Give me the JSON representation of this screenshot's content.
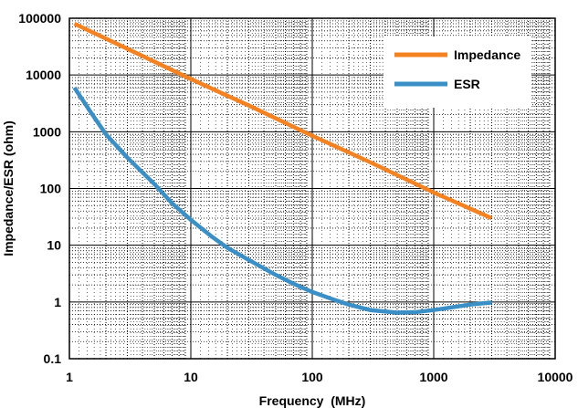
{
  "chart_data": {
    "type": "line",
    "xlabel": "Frequency  (MHz)",
    "ylabel": "Impedance/ESR (ohm)",
    "x_scale": "log",
    "y_scale": "log",
    "xlim": [
      1,
      10000
    ],
    "ylim": [
      0.1,
      100000
    ],
    "x_ticks": [
      "1",
      "10",
      "100",
      "1000",
      "10000"
    ],
    "y_ticks": [
      "0.1",
      "1",
      "10",
      "100",
      "1000",
      "10000",
      "100000"
    ],
    "grid": true,
    "legend_position": "top-right",
    "series": [
      {
        "name": "Impedance",
        "color": "#F58220",
        "x": [
          1.1,
          3,
          10,
          30,
          100,
          300,
          1000,
          3000
        ],
        "y": [
          80000,
          29000,
          8500,
          2900,
          850,
          290,
          85,
          30
        ]
      },
      {
        "name": "ESR",
        "color": "#3A8FC7",
        "x": [
          1.1,
          1.5,
          2,
          3,
          5,
          7,
          10,
          15,
          20,
          30,
          50,
          70,
          100,
          150,
          200,
          300,
          500,
          700,
          1000,
          1500,
          2000,
          3000
        ],
        "y": [
          6000,
          2200,
          900,
          350,
          120,
          55,
          28,
          14,
          9,
          5.5,
          3,
          2.1,
          1.5,
          1.1,
          0.9,
          0.72,
          0.65,
          0.66,
          0.72,
          0.82,
          0.9,
          0.98
        ]
      }
    ]
  }
}
